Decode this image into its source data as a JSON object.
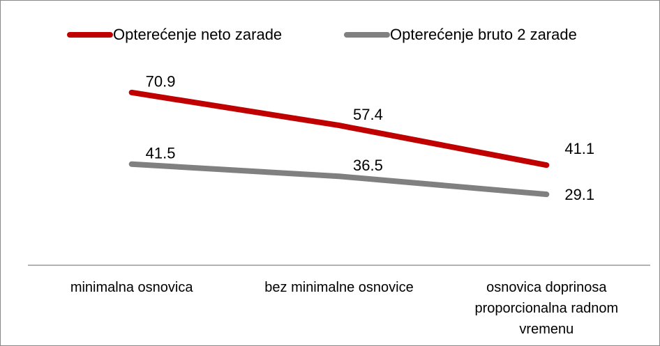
{
  "chart_data": {
    "type": "line",
    "categories": [
      "minimalna osnovica",
      "bez minimalne osnovice",
      "osnovica doprinosa proporcionalna radnom vremenu"
    ],
    "series": [
      {
        "name": "Opterećenje neto zarade",
        "color": "#c00000",
        "values": [
          70.9,
          57.4,
          41.1
        ]
      },
      {
        "name": "Opterećenje bruto 2 zarade",
        "color": "#808080",
        "values": [
          41.5,
          36.5,
          29.1
        ]
      }
    ],
    "ylim": [
      0,
      80
    ]
  }
}
